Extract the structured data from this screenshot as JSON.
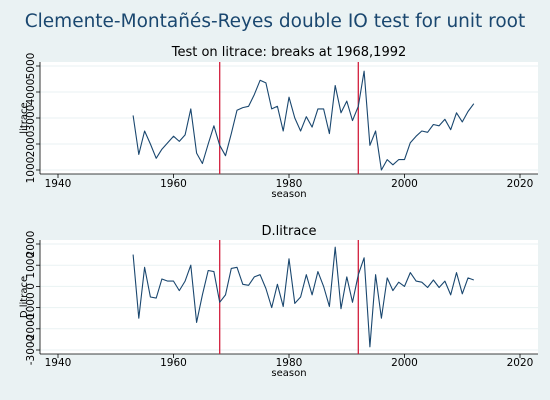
{
  "figure": {
    "title": "Clemente-Montañés-Reyes double IO test for unit root",
    "colors": {
      "background": "#eaf2f3",
      "plot_background": "#ffffff",
      "series_line": "#1a476f",
      "break_line": "#d21e3c",
      "grid": "#eaf2f3"
    }
  },
  "chart_data": [
    {
      "type": "line",
      "title": "Test on litrace: breaks at 1968,1992",
      "xlabel": "season",
      "ylabel": "litrace",
      "xlim": [
        1940,
        2020
      ],
      "ylim": [
        1000,
        5000
      ],
      "xticks": [
        1940,
        1960,
        1980,
        2000,
        2020
      ],
      "yticks": [
        1000,
        2000,
        3000,
        4000,
        5000
      ],
      "grid": true,
      "legend": "none",
      "breaks": [
        1968,
        1992
      ],
      "series": [
        {
          "x": [
            1953,
            1954,
            1955,
            1956,
            1957,
            1958,
            1959,
            1960,
            1961,
            1962,
            1963,
            1964,
            1965,
            1966,
            1967,
            1968,
            1969,
            1970,
            1971,
            1972,
            1973,
            1974,
            1975,
            1976,
            1977,
            1978,
            1979,
            1980,
            1981,
            1982,
            1983,
            1984,
            1985,
            1986,
            1987,
            1988,
            1989,
            1990,
            1991,
            1992,
            1993,
            1994,
            1995,
            1996,
            1997,
            1998,
            1999,
            2000,
            2001,
            2002,
            2003,
            2004,
            2005,
            2006,
            2007,
            2008,
            2009,
            2010,
            2011,
            2012
          ],
          "values": [
            3100,
            1600,
            2500,
            2000,
            1450,
            1800,
            2050,
            2300,
            2100,
            2350,
            3350,
            1650,
            1250,
            2000,
            2700,
            1950,
            1550,
            2400,
            3300,
            3400,
            3450,
            3900,
            4450,
            4350,
            3350,
            3450,
            2500,
            3800,
            3000,
            2500,
            3050,
            2650,
            3350,
            3350,
            2400,
            4250,
            3200,
            3650,
            2900,
            3450,
            4800,
            1950,
            2500,
            1000,
            1400,
            1200,
            1400,
            1400,
            2050,
            2300,
            2500,
            2450,
            2750,
            2700,
            2950,
            2550,
            3200,
            2850,
            3250,
            3550
          ]
        }
      ]
    },
    {
      "type": "line",
      "title": "D.litrace",
      "xlabel": "season",
      "ylabel": "D.litrace",
      "xlim": [
        1940,
        2020
      ],
      "ylim": [
        -3000,
        2000
      ],
      "xticks": [
        1940,
        1960,
        1980,
        2000,
        2020
      ],
      "yticks": [
        -3000,
        -2000,
        -1000,
        0,
        1000,
        2000
      ],
      "grid": true,
      "legend": "none",
      "breaks": [
        1968,
        1992
      ],
      "series": [
        {
          "x": [
            1953,
            1954,
            1955,
            1956,
            1957,
            1958,
            1959,
            1960,
            1961,
            1962,
            1963,
            1964,
            1965,
            1966,
            1967,
            1968,
            1969,
            1970,
            1971,
            1972,
            1973,
            1974,
            1975,
            1976,
            1977,
            1978,
            1979,
            1980,
            1981,
            1982,
            1983,
            1984,
            1985,
            1986,
            1987,
            1988,
            1989,
            1990,
            1991,
            1992,
            1993,
            1994,
            1995,
            1996,
            1997,
            1998,
            1999,
            2000,
            2001,
            2002,
            2003,
            2004,
            2005,
            2006,
            2007,
            2008,
            2009,
            2010,
            2011,
            2012
          ],
          "values": [
            1500,
            -1500,
            900,
            -500,
            -550,
            350,
            250,
            250,
            -200,
            250,
            1000,
            -1700,
            -400,
            750,
            700,
            -750,
            -400,
            850,
            900,
            100,
            50,
            450,
            550,
            -100,
            -1000,
            100,
            -950,
            1300,
            -800,
            -500,
            550,
            -400,
            700,
            0,
            -950,
            1850,
            -1050,
            450,
            -750,
            550,
            1350,
            -2850,
            550,
            -1500,
            400,
            -200,
            200,
            0,
            650,
            250,
            200,
            -50,
            300,
            -50,
            250,
            -400,
            650,
            -350,
            400,
            300
          ]
        }
      ]
    }
  ]
}
